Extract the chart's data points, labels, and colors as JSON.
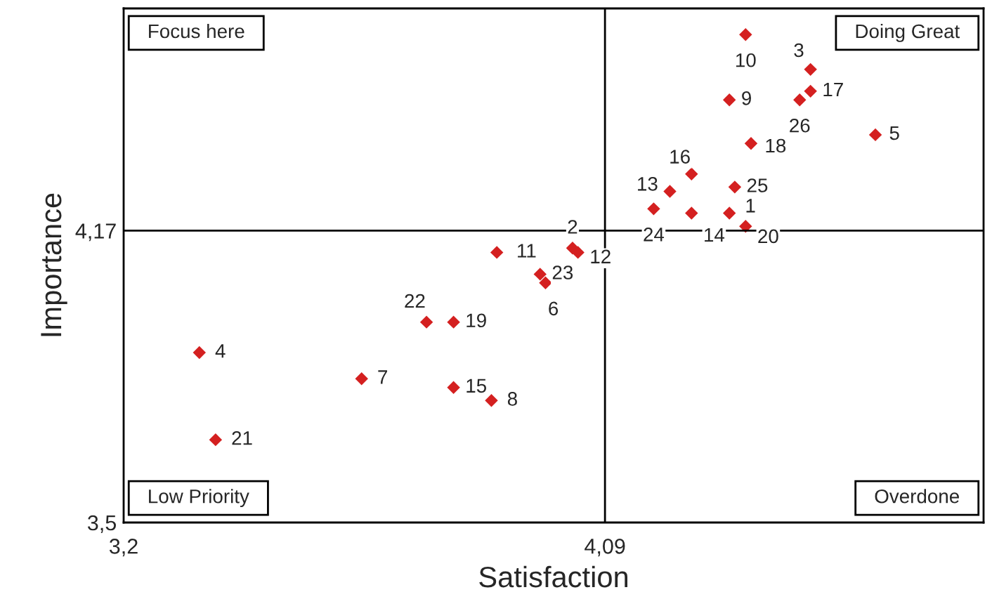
{
  "chart_data": {
    "type": "scatter",
    "xlabel": "Satisfaction",
    "ylabel": "Importance",
    "marker": "diamond",
    "grid": false,
    "legend": false,
    "series": [
      {
        "color": "#d42020",
        "x": [
          4.35,
          4.47,
          4.47,
          4.32,
          4.45,
          4.36,
          4.59,
          4.25,
          4.21,
          4.33,
          4.18,
          4.25,
          4.32,
          4.35,
          4.03,
          4.04,
          3.89,
          3.97,
          3.98,
          3.76,
          3.81,
          3.34,
          3.64,
          3.81,
          3.88,
          3.37
        ],
        "values": [
          4.62,
          4.54,
          4.49,
          4.47,
          4.47,
          4.37,
          4.39,
          4.3,
          4.26,
          4.27,
          4.22,
          4.21,
          4.21,
          4.18,
          4.13,
          4.12,
          4.12,
          4.07,
          4.05,
          3.96,
          3.96,
          3.89,
          3.83,
          3.81,
          3.78,
          3.69
        ]
      }
    ],
    "xlim": [
      3.2,
      4.79
    ],
    "ylim": [
      3.5,
      4.68
    ],
    "xticks": [
      {
        "value": 3.2,
        "label": "3,2"
      },
      {
        "value": 4.09,
        "label": "4,09"
      }
    ],
    "yticks": [
      {
        "value": 3.5,
        "label": "3,5"
      },
      {
        "value": 4.17,
        "label": "4,17"
      }
    ],
    "ref_lines": [
      {
        "axis": "x",
        "value": 4.09,
        "color": "#000000"
      },
      {
        "axis": "y",
        "value": 4.17,
        "color": "#000000"
      }
    ],
    "annotations": [
      {
        "text": "10",
        "x": 4.35,
        "y": 4.62
      },
      {
        "text": "3",
        "x": 4.47,
        "y": 4.54
      },
      {
        "text": "17",
        "x": 4.47,
        "y": 4.49
      },
      {
        "text": "9",
        "x": 4.32,
        "y": 4.47
      },
      {
        "text": "26",
        "x": 4.45,
        "y": 4.47
      },
      {
        "text": "18",
        "x": 4.36,
        "y": 4.37
      },
      {
        "text": "5",
        "x": 4.59,
        "y": 4.39
      },
      {
        "text": "16",
        "x": 4.25,
        "y": 4.3
      },
      {
        "text": "13",
        "x": 4.21,
        "y": 4.26
      },
      {
        "text": "25",
        "x": 4.33,
        "y": 4.27
      },
      {
        "text": "24",
        "x": 4.18,
        "y": 4.22
      },
      {
        "text": "14",
        "x": 4.25,
        "y": 4.21
      },
      {
        "text": "1",
        "x": 4.32,
        "y": 4.21
      },
      {
        "text": "20",
        "x": 4.35,
        "y": 4.18
      },
      {
        "text": "2",
        "x": 4.03,
        "y": 4.13
      },
      {
        "text": "12",
        "x": 4.04,
        "y": 4.12
      },
      {
        "text": "11",
        "x": 3.89,
        "y": 4.12
      },
      {
        "text": "23",
        "x": 3.97,
        "y": 4.07
      },
      {
        "text": "6",
        "x": 3.98,
        "y": 4.05
      },
      {
        "text": "22",
        "x": 3.76,
        "y": 3.96
      },
      {
        "text": "19",
        "x": 3.81,
        "y": 3.96
      },
      {
        "text": "4",
        "x": 3.34,
        "y": 3.89
      },
      {
        "text": "7",
        "x": 3.64,
        "y": 3.83
      },
      {
        "text": "15",
        "x": 3.81,
        "y": 3.81
      },
      {
        "text": "8",
        "x": 3.88,
        "y": 3.78
      },
      {
        "text": "21",
        "x": 3.37,
        "y": 3.69
      },
      "Focus here",
      "Doing Great",
      "Low Priority",
      "Overdone"
    ]
  }
}
